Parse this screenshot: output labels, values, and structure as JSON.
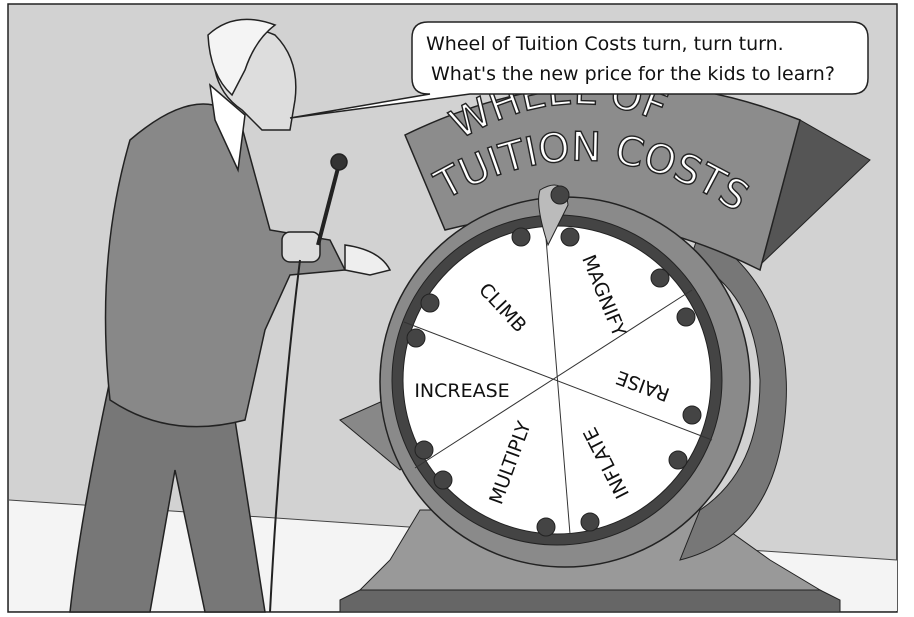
{
  "speech_bubble": {
    "lines": [
      "Wheel of Tuition Costs turn, turn turn.",
      "What's the new price for the kids to learn?"
    ]
  },
  "sign": {
    "lines": [
      "WHEEL  OF",
      "TUITION COSTS"
    ]
  },
  "wheel": {
    "segments": [
      "CLIMB",
      "MAGNIFY",
      "RAISE",
      "INFLATE",
      "MULTIPLY",
      "INCREASE"
    ]
  }
}
